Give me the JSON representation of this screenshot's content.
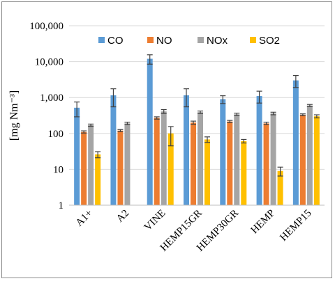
{
  "chart_data": {
    "type": "bar",
    "log_scale": true,
    "ylabel": "[mg Nm⁻³]",
    "ylim": [
      1,
      100000
    ],
    "y_ticks": [
      "1",
      "10",
      "100",
      "1,000",
      "10,000",
      "100,000"
    ],
    "grid": true,
    "legend_position": "top",
    "categories": [
      "A1+",
      "A2",
      "VINE",
      "HEMP15GR",
      "HEMP30GR",
      "HEMP",
      "HEMP15"
    ],
    "series": [
      {
        "name": "CO",
        "color": "#5b9bd5",
        "values": [
          520,
          1150,
          12000,
          1150,
          900,
          1100,
          3000
        ],
        "errors": [
          230,
          600,
          3500,
          600,
          220,
          400,
          1100
        ]
      },
      {
        "name": "NO",
        "color": "#ed7d31",
        "values": [
          110,
          120,
          270,
          200,
          215,
          190,
          330
        ],
        "errors": [
          8,
          8,
          20,
          20,
          15,
          15,
          20
        ]
      },
      {
        "name": "NOx",
        "color": "#a5a5a5",
        "values": [
          170,
          190,
          410,
          390,
          340,
          360,
          600
        ],
        "errors": [
          12,
          15,
          50,
          30,
          25,
          30,
          40
        ]
      },
      {
        "name": "SO2",
        "color": "#ffc000",
        "values": [
          26,
          null,
          100,
          68,
          61,
          9,
          300
        ],
        "errors": [
          5,
          null,
          55,
          12,
          7,
          2.5,
          30
        ]
      }
    ]
  }
}
